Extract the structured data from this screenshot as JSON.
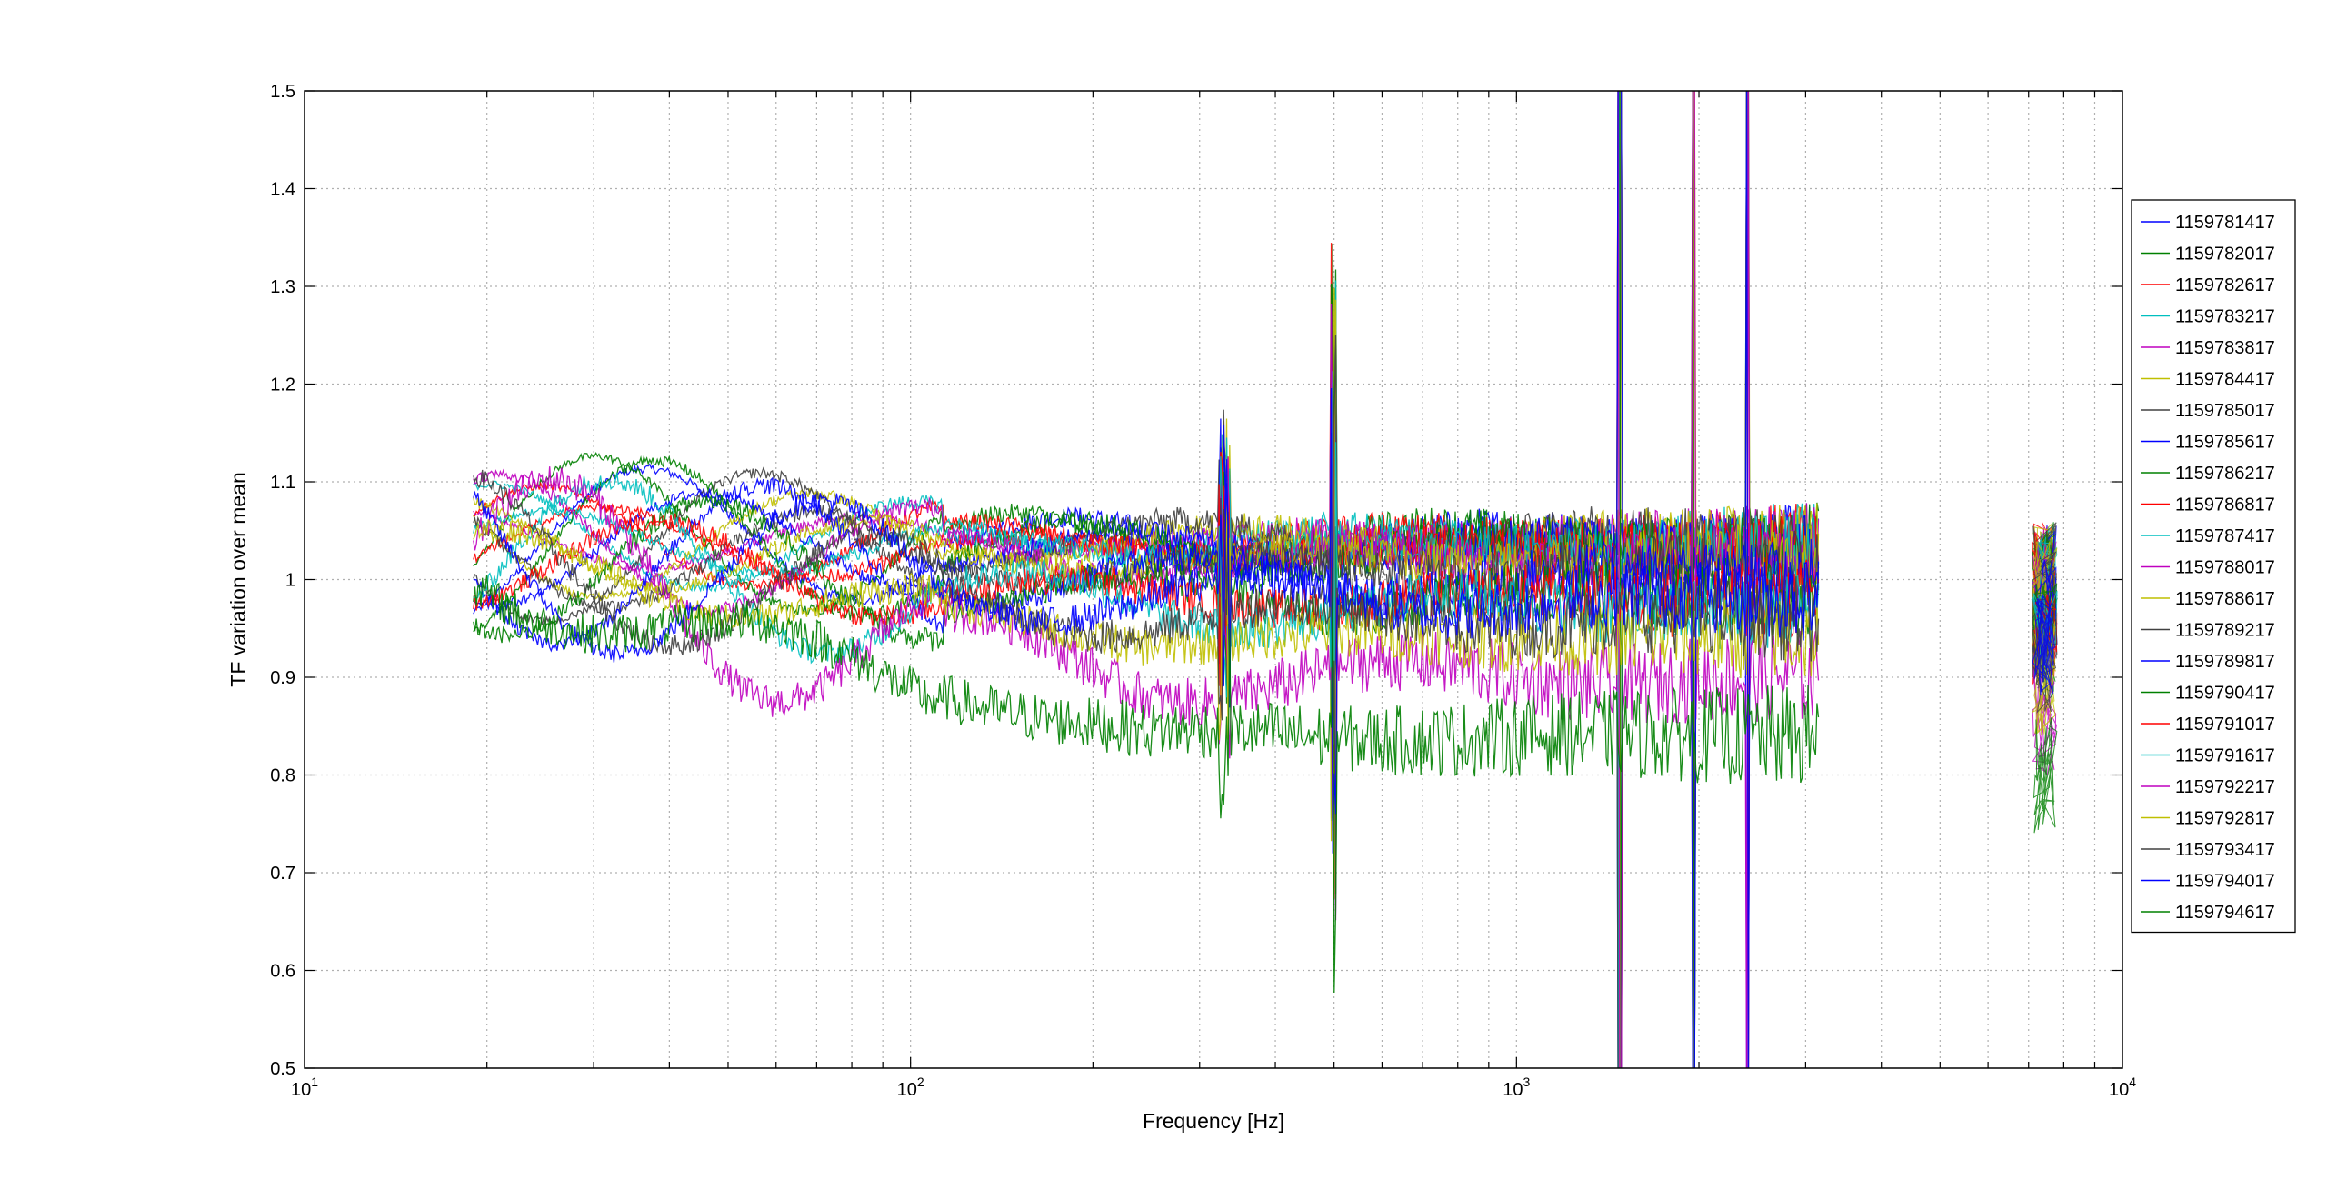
{
  "chart_data": {
    "type": "line",
    "title": "",
    "xlabel": "Frequency [Hz]",
    "ylabel": "TF variation over mean",
    "x_scale": "log",
    "xlim": [
      10,
      10000
    ],
    "ylim": [
      0.5,
      1.5
    ],
    "grid": true,
    "legend_position": "right",
    "x_ticks": [
      {
        "value": 10,
        "base": "10",
        "exp": "1"
      },
      {
        "value": 100,
        "base": "10",
        "exp": "2"
      },
      {
        "value": 1000,
        "base": "10",
        "exp": "3"
      },
      {
        "value": 10000,
        "base": "10",
        "exp": "4"
      }
    ],
    "y_ticks": [
      "0.5",
      "0.6",
      "0.7",
      "0.8",
      "0.9",
      "1",
      "1.1",
      "1.2",
      "1.3",
      "1.4",
      "1.5"
    ],
    "series": [
      {
        "name": "1159781417",
        "color": "#0000ff",
        "level": 1.06
      },
      {
        "name": "1159782017",
        "color": "#008000",
        "level": 1.06
      },
      {
        "name": "1159782617",
        "color": "#ff0000",
        "level": 1.06
      },
      {
        "name": "1159783217",
        "color": "#00bfbf",
        "level": 1.06
      },
      {
        "name": "1159783817",
        "color": "#bf00bf",
        "level": 1.06
      },
      {
        "name": "1159784417",
        "color": "#bfbf00",
        "level": 1.06
      },
      {
        "name": "1159785017",
        "color": "#404040",
        "level": 1.06
      },
      {
        "name": "1159785617",
        "color": "#0000ff",
        "level": 1.05
      },
      {
        "name": "1159786217",
        "color": "#008000",
        "level": 1.05
      },
      {
        "name": "1159786817",
        "color": "#ff0000",
        "level": 1.05
      },
      {
        "name": "1159787417",
        "color": "#00bfbf",
        "level": 1.05
      },
      {
        "name": "1159788017",
        "color": "#bf00bf",
        "level": 1.04
      },
      {
        "name": "1159788617",
        "color": "#bfbf00",
        "level": 1.04
      },
      {
        "name": "1159789217",
        "color": "#404040",
        "level": 1.03
      },
      {
        "name": "1159789817",
        "color": "#0000ff",
        "level": 1.02
      },
      {
        "name": "1159790417",
        "color": "#008000",
        "level": 1.0
      },
      {
        "name": "1159791017",
        "color": "#ff0000",
        "level": 1.0
      },
      {
        "name": "1159791617",
        "color": "#00bfbf",
        "level": 0.99
      },
      {
        "name": "1159792217",
        "color": "#bf00bf",
        "level": 0.92
      },
      {
        "name": "1159792817",
        "color": "#bfbf00",
        "level": 0.96
      },
      {
        "name": "1159793417",
        "color": "#404040",
        "level": 0.98
      },
      {
        "name": "1159794017",
        "color": "#0000ff",
        "level": 1.0
      },
      {
        "name": "1159794617",
        "color": "#008000",
        "level": 0.86
      }
    ]
  }
}
